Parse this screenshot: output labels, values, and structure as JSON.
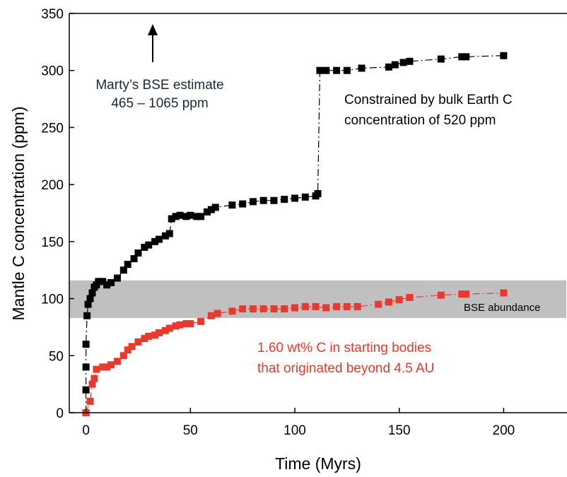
{
  "chart_data": {
    "type": "scatter",
    "x_label": "Time (Myrs)",
    "y_label": "Mantle C concentration (ppm)",
    "xlim": [
      -8,
      230
    ],
    "ylim": [
      0,
      350
    ],
    "xticks": [
      0,
      50,
      100,
      150,
      200
    ],
    "yticks": [
      0,
      50,
      100,
      150,
      200,
      250,
      300,
      350
    ],
    "band": {
      "label": "BSE abundance",
      "range": [
        83,
        116
      ],
      "color": "#c0c0c0"
    },
    "annotations": [
      {
        "lines": [
          "Marty’s BSE estimate",
          "465 – 1065 ppm"
        ],
        "color": "#1a2a3a"
      },
      {
        "lines": [
          "Constrained by bulk Earth C",
          "concentration of 520 ppm"
        ],
        "color": "#000000"
      },
      {
        "lines": [
          "1.60 wt% C in starting bodies",
          "that originated beyond 4.5 AU"
        ],
        "color": "#e8392c"
      }
    ],
    "series": [
      {
        "color": "#000000",
        "x": [
          0,
          0,
          0,
          0,
          0.5,
          1,
          2,
          3,
          4,
          5,
          6,
          8,
          10,
          12,
          15,
          18,
          20,
          23,
          25,
          28,
          30,
          33,
          35,
          38,
          40,
          41,
          43,
          45,
          48,
          50,
          53,
          55,
          58,
          60,
          62,
          70,
          75,
          80,
          85,
          90,
          95,
          100,
          105,
          110,
          111,
          112,
          115,
          120,
          125,
          132,
          145,
          148,
          152,
          155,
          170,
          180,
          182,
          200
        ],
        "values": [
          0,
          20,
          40,
          60,
          85,
          95,
          100,
          105,
          110,
          112,
          115,
          115,
          112,
          114,
          118,
          125,
          130,
          135,
          140,
          145,
          147,
          150,
          152,
          155,
          157,
          170,
          172,
          173,
          172,
          173,
          172,
          172,
          176,
          178,
          180,
          182,
          183,
          185,
          186,
          186,
          187,
          188,
          189,
          190,
          192,
          300,
          300,
          300,
          300,
          302,
          303,
          305,
          307,
          308,
          310,
          312,
          312,
          313
        ]
      },
      {
        "color": "#e8392c",
        "x": [
          0,
          2,
          3,
          4,
          5,
          8,
          10,
          12,
          15,
          18,
          20,
          22,
          25,
          28,
          30,
          33,
          35,
          38,
          40,
          43,
          45,
          48,
          50,
          55,
          60,
          63,
          70,
          75,
          80,
          85,
          90,
          95,
          100,
          105,
          110,
          115,
          120,
          125,
          130,
          140,
          145,
          150,
          155,
          170,
          180,
          182,
          200
        ],
        "values": [
          0,
          10,
          25,
          30,
          38,
          40,
          40,
          42,
          45,
          50,
          55,
          58,
          62,
          65,
          67,
          68,
          70,
          72,
          74,
          76,
          77,
          78,
          78,
          80,
          85,
          87,
          89,
          91,
          91,
          91,
          91,
          91,
          92,
          93,
          93,
          92,
          93,
          93,
          93,
          95,
          97,
          99,
          101,
          103,
          104,
          104,
          105
        ]
      }
    ]
  }
}
